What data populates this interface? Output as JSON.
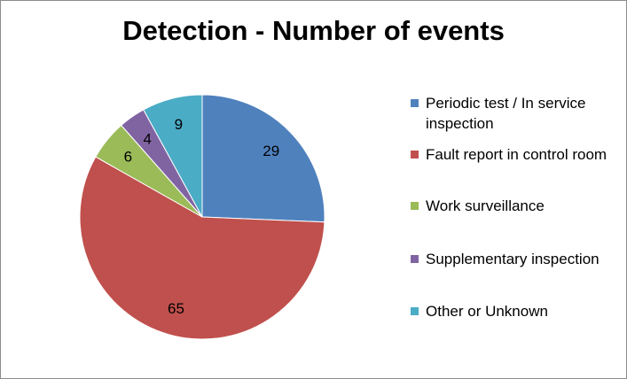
{
  "chart_data": {
    "type": "pie",
    "title": "Detection - Number of events",
    "slices": [
      {
        "label": "Periodic test / In service inspection",
        "value": 29,
        "color": "#4F81BD"
      },
      {
        "label": "Fault report in control room",
        "value": 65,
        "color": "#C0504D"
      },
      {
        "label": "Work surveillance",
        "value": 6,
        "color": "#9BBB59"
      },
      {
        "label": "Supplementary inspection",
        "value": 4,
        "color": "#8064A2"
      },
      {
        "label": "Other or Unknown",
        "value": 9,
        "color": "#4BACC6"
      }
    ],
    "start_angle": "12 o'clock",
    "direction": "clockwise",
    "legend_position": "right"
  }
}
